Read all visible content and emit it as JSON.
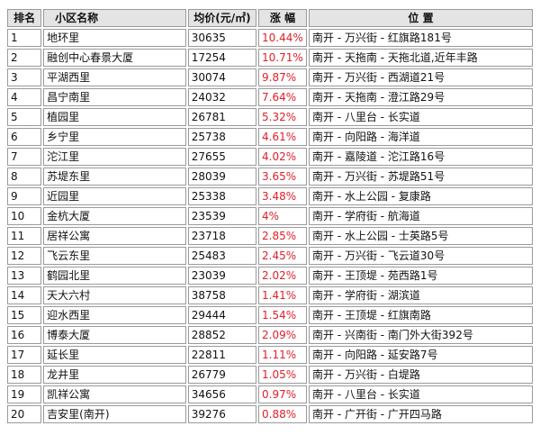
{
  "table": {
    "headers": {
      "rank": "排名",
      "name": "小区名称",
      "price": "均价(元/㎡)",
      "change": "涨 幅",
      "location": "位 置"
    },
    "rows": [
      {
        "rank": "1",
        "name": "地环里",
        "price": "30635",
        "change": "10.44%",
        "location": "南开 - 万兴街 - 红旗路181号"
      },
      {
        "rank": "2",
        "name": "融创中心春景大厦",
        "price": "17254",
        "change": "10.71%",
        "location": "南开 - 天拖南 - 天拖北道,近年丰路"
      },
      {
        "rank": "3",
        "name": "平湖西里",
        "price": "30074",
        "change": "9.87%",
        "location": "南开 - 万兴街 - 西湖道21号"
      },
      {
        "rank": "4",
        "name": "昌宁南里",
        "price": "24032",
        "change": "7.64%",
        "location": "南开 - 天拖南 - 澄江路29号"
      },
      {
        "rank": "5",
        "name": "植园里",
        "price": "26781",
        "change": "5.32%",
        "location": "南开 - 八里台 - 长实道"
      },
      {
        "rank": "6",
        "name": "乡宁里",
        "price": "25738",
        "change": "4.61%",
        "location": "南开 - 向阳路 - 海洋道"
      },
      {
        "rank": "7",
        "name": "沱江里",
        "price": "27655",
        "change": "4.02%",
        "location": "南开 - 嘉陵道 - 沱江路16号"
      },
      {
        "rank": "8",
        "name": "苏堤东里",
        "price": "28039",
        "change": "3.65%",
        "location": "南开 - 万兴街 - 苏堤路51号"
      },
      {
        "rank": "9",
        "name": "近园里",
        "price": "25338",
        "change": "3.48%",
        "location": "南开 - 水上公园 - 复康路"
      },
      {
        "rank": "10",
        "name": "金杭大厦",
        "price": "23539",
        "change": "4%",
        "location": "南开 - 学府街 - 航海道"
      },
      {
        "rank": "11",
        "name": "居祥公寓",
        "price": "23718",
        "change": "2.85%",
        "location": "南开 - 水上公园 - 士英路5号"
      },
      {
        "rank": "12",
        "name": "飞云东里",
        "price": "25483",
        "change": "2.45%",
        "location": "南开 - 万兴街 - 飞云道30号"
      },
      {
        "rank": "13",
        "name": "鹤园北里",
        "price": "23039",
        "change": "2.02%",
        "location": "南开 - 王顶堤 - 苑西路1号"
      },
      {
        "rank": "14",
        "name": "天大六村",
        "price": "38758",
        "change": "1.41%",
        "location": "南开 - 学府街 - 湖滨道"
      },
      {
        "rank": "15",
        "name": "迎水西里",
        "price": "29444",
        "change": "1.54%",
        "location": "南开 - 王顶堤 - 红旗南路"
      },
      {
        "rank": "16",
        "name": "博泰大厦",
        "price": "28852",
        "change": "2.09%",
        "location": "南开 - 兴南街 - 南门外大街392号"
      },
      {
        "rank": "17",
        "name": "延长里",
        "price": "22811",
        "change": "1.11%",
        "location": "南开 - 向阳路 - 延安路7号"
      },
      {
        "rank": "18",
        "name": "龙井里",
        "price": "26779",
        "change": "1.05%",
        "location": "南开 - 万兴街 - 白堤路"
      },
      {
        "rank": "19",
        "name": "凯祥公寓",
        "price": "34656",
        "change": "0.97%",
        "location": "南开 - 八里台 - 长实道"
      },
      {
        "rank": "20",
        "name": "吉安里(南开)",
        "price": "39276",
        "change": "0.88%",
        "location": "南开 - 广开街 - 广开四马路"
      }
    ]
  },
  "colors": {
    "change_text": "#e0202a",
    "header_bg": "#e4e4e4",
    "border": "#9a9a9a"
  }
}
